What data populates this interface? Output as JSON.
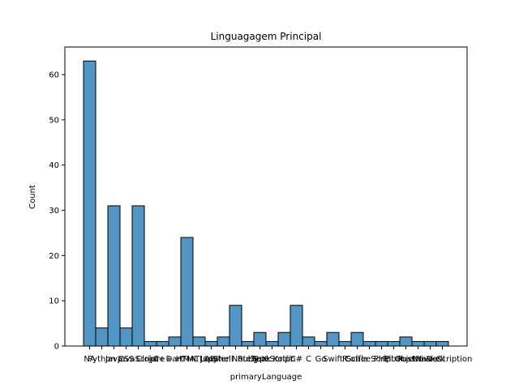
{
  "chart_data": {
    "type": "bar",
    "title": "Linguagagem Principal",
    "x_label": "primaryLanguage",
    "y_label": "Count",
    "categories": [
      "NA",
      "Python",
      "Java",
      "CSS",
      "JavaScript",
      "Clojure",
      "C++",
      "Dart",
      "HTML",
      "MATLAB",
      "Lua",
      "Shell",
      "Jupyter Notebook",
      "Ruby",
      "TeX",
      "TypeScript",
      "Kotlin",
      "C#",
      "C",
      "Go",
      "Swift",
      "R",
      "Scala",
      "CoffeeScript",
      "PHP",
      "Elixir",
      "Rust",
      "Objective-C",
      "Haskell",
      "No Description"
    ],
    "values": [
      63,
      4,
      31,
      4,
      31,
      1,
      1,
      2,
      24,
      2,
      1,
      2,
      9,
      1,
      3,
      1,
      3,
      9,
      2,
      1,
      3,
      1,
      3,
      1,
      1,
      1,
      2,
      1,
      1,
      1
    ],
    "color": "#5395c4",
    "ylim": [
      0,
      66.1
    ],
    "yticks": [
      0,
      10,
      20,
      30,
      40,
      50,
      60
    ]
  }
}
